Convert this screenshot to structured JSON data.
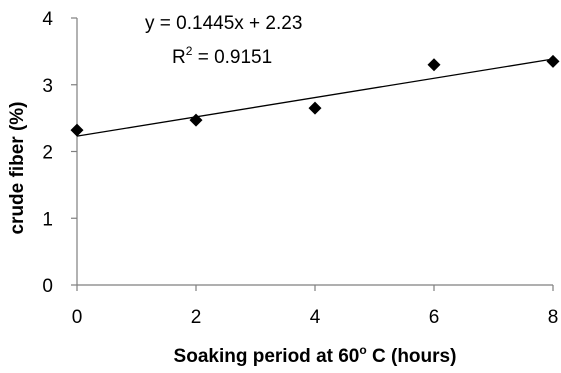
{
  "chart_data": {
    "type": "scatter",
    "x": [
      0,
      2,
      4,
      6,
      8
    ],
    "y": [
      2.32,
      2.47,
      2.65,
      3.3,
      3.35
    ],
    "marker": "diamond",
    "marker_color": "#000000",
    "xlim": [
      0,
      8
    ],
    "ylim": [
      0,
      4
    ],
    "x_ticks": [
      0,
      2,
      4,
      6,
      8
    ],
    "y_ticks": [
      0,
      1,
      2,
      3,
      4
    ],
    "xlabel_main": "Soaking period at 60",
    "xlabel_sup": "o",
    "xlabel_tail": " C (hours)",
    "ylabel": "crude fiber (%)",
    "trendline": {
      "slope": 0.1445,
      "intercept": 2.23,
      "equation": "y = 0.1445x + 2.23",
      "r2_label": "R",
      "r2_sup": "2",
      "r2_value": " = 0.9151"
    },
    "grid": false,
    "legend": "none"
  }
}
